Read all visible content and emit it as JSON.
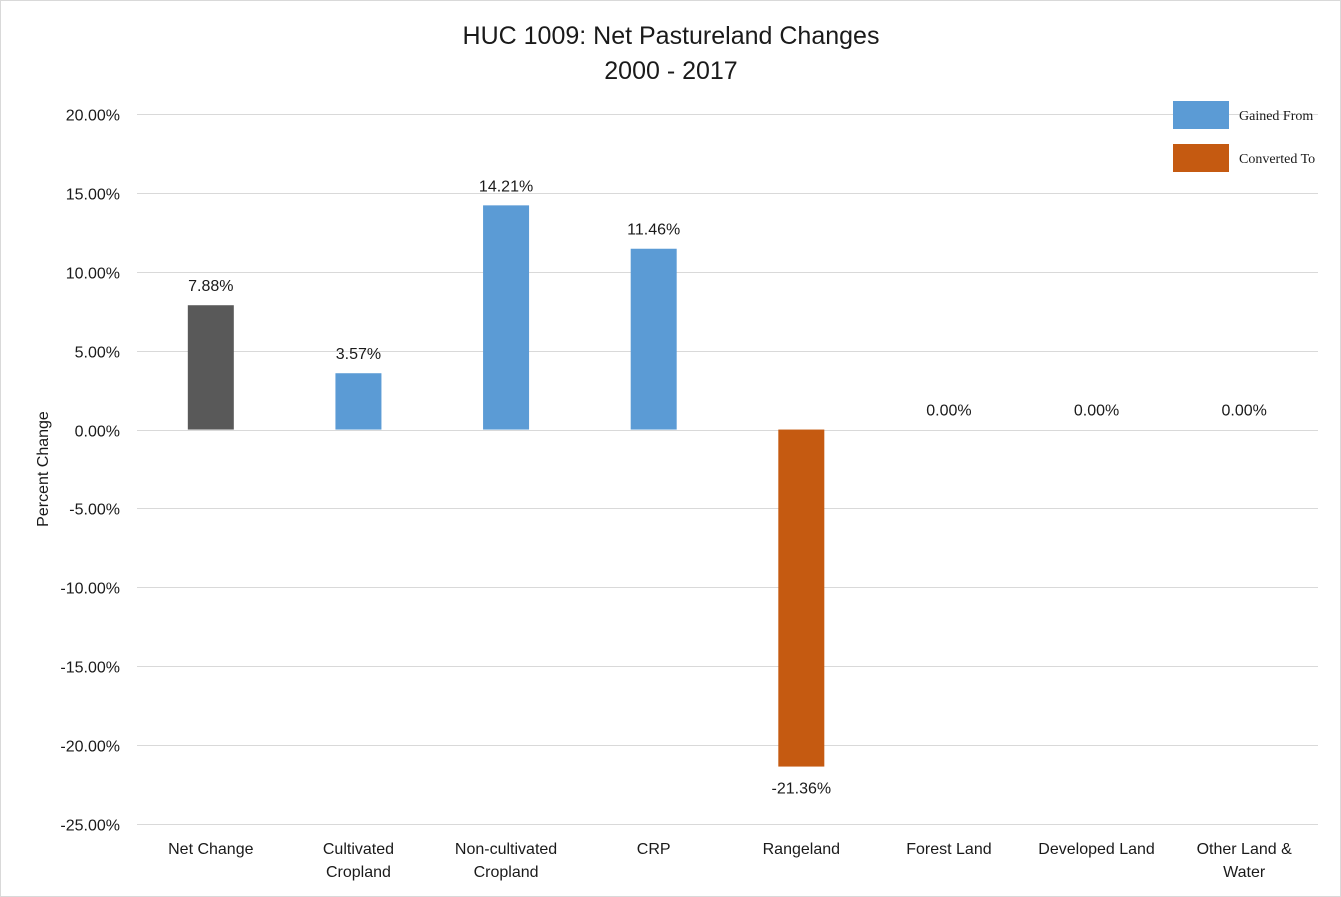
{
  "chart_data": {
    "type": "bar",
    "title": "HUC 1009: Net Pastureland Changes",
    "subtitle": "2000 - 2017",
    "ylabel": "Percent Change",
    "xlabel": "",
    "ylim": [
      -25,
      20
    ],
    "ytick_step": 5,
    "yticks": [
      "20.00%",
      "15.00%",
      "10.00%",
      "5.00%",
      "0.00%",
      "-5.00%",
      "-10.00%",
      "-15.00%",
      "-20.00%",
      "-25.00%"
    ],
    "grid": true,
    "legend_position": "top-right",
    "legend": [
      {
        "name": "Gained From",
        "color": "#5b9bd5"
      },
      {
        "name": "Converted To",
        "color": "#c55a11"
      }
    ],
    "categories": [
      [
        "Net Change"
      ],
      [
        "Cultivated",
        "Cropland"
      ],
      [
        "Non-cultivated",
        "Cropland"
      ],
      [
        "CRP"
      ],
      [
        "Rangeland"
      ],
      [
        "Forest Land"
      ],
      [
        "Developed Land"
      ],
      [
        "Other Land &",
        "Water"
      ]
    ],
    "values": [
      7.88,
      3.57,
      14.21,
      11.46,
      -21.36,
      0.0,
      0.0,
      0.0
    ],
    "value_labels": [
      "7.88%",
      "3.57%",
      "14.21%",
      "11.46%",
      "-21.36%",
      "0.00%",
      "0.00%",
      "0.00%"
    ],
    "bar_colors": [
      "#595959",
      "#5b9bd5",
      "#5b9bd5",
      "#5b9bd5",
      "#c55a11",
      "#5b9bd5",
      "#5b9bd5",
      "#5b9bd5"
    ]
  }
}
